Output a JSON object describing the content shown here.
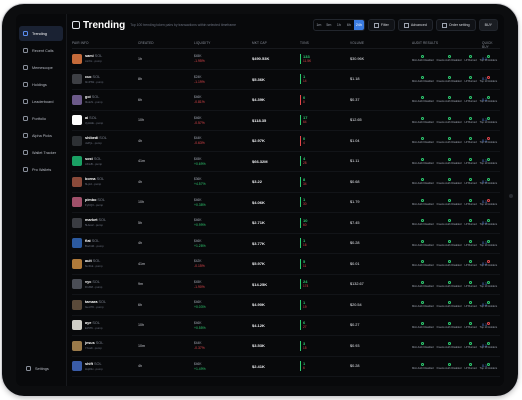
{
  "app": {
    "title": "Trending",
    "subtitle": "Top 100 trending token pairs by transactions within selected timeframe"
  },
  "sidebar": {
    "items": [
      {
        "label": "Trending",
        "active": true
      },
      {
        "label": "Recent Calls"
      },
      {
        "label": "Memescope"
      },
      {
        "label": "Holdings"
      },
      {
        "label": "Leaderboard"
      },
      {
        "label": "Portfolio"
      },
      {
        "label": "Alpha Picks"
      },
      {
        "label": "Wallet Tracker"
      },
      {
        "label": "Pro Wallets"
      }
    ],
    "settings_label": "Settings"
  },
  "header": {
    "timeframes": [
      "1m",
      "5m",
      "1h",
      "6h",
      "24h"
    ],
    "selected_timeframe": "24h",
    "filter_label": "Filter",
    "advanced_label": "Advanced",
    "quick_buy_label": "Order setting",
    "buy_label": "BUY"
  },
  "table": {
    "headers": [
      "PAIR INFO",
      "CREATED",
      "LIQUIDITY",
      "MKT CAP",
      "TXNS",
      "VOLUME",
      "AUDIT RESULTS",
      "QUICK BUY"
    ],
    "audit_labels": [
      "Mint Auth Disabled",
      "Freeze Auth Disabled",
      "LP Burned",
      "Top 10 Holders"
    ],
    "quick_buy": "0.1",
    "rows": [
      {
        "name": "sami",
        "sym": "SOL",
        "meta": "AsXtx...pump",
        "created": "1h",
        "liq": "$45K",
        "pct": "-1.95%",
        "pct_sign": "neg",
        "mcap": "$490.53K",
        "buys": "133",
        "sells": "11.5K",
        "volume": "$30.96K",
        "avatar": "#c46a3a"
      },
      {
        "name": "cuc",
        "sym": "SOL",
        "meta": "9mPtW...pump",
        "created": "8h",
        "liq": "$24K",
        "pct": "-1.19%",
        "pct_sign": "neg",
        "mcap": "$5.36K",
        "buys": "1",
        "sells": "14",
        "volume": "$1.18",
        "avatar": "#3d3f44"
      },
      {
        "name": "goi",
        "sym": "SOL",
        "meta": "9kdoN...pump",
        "created": "6h",
        "liq": "$46K",
        "pct": "-0.81%",
        "pct_sign": "neg",
        "mcap": "$4.39K",
        "buys": "0",
        "sells": "8",
        "volume": "$0.37",
        "avatar": "#6c5a8a"
      },
      {
        "name": "ai",
        "sym": "SOL",
        "meta": "3yHHE...pump",
        "created": "10h",
        "liq": "$46K",
        "pct": "-0.57%",
        "pct_sign": "neg",
        "mcap": "$118.35",
        "buys": "17",
        "sells": "64",
        "volume": "$12.65",
        "avatar": "#ffffff"
      },
      {
        "name": "shibedi",
        "sym": "SOL",
        "meta": "JwPjL...pump",
        "created": "4h",
        "liq": "$44K",
        "pct": "-0.63%",
        "pct_sign": "neg",
        "mcap": "$2.97K",
        "buys": "0",
        "sells": "4",
        "volume": "$1.04",
        "avatar": "#2d3034"
      },
      {
        "name": "sost",
        "sym": "SOL",
        "meta": "AKiuB...pump",
        "created": "41m",
        "liq": "$45K",
        "pct": "+0.69%",
        "pct_sign": "pos",
        "mcap": "$66.32M",
        "buys": "4",
        "sells": "28",
        "volume": "$1.11",
        "avatar": "#1aa064"
      },
      {
        "name": "borna",
        "sym": "SOL",
        "meta": "6Lpid...pump",
        "created": "4h",
        "liq": "$36K",
        "pct": "+4.57%",
        "pct_sign": "pos",
        "mcap": "$3.22",
        "buys": "8",
        "sells": "34",
        "volume": "$0.68",
        "avatar": "#8a4a3a"
      },
      {
        "name": "pimbo",
        "sym": "SOL",
        "meta": "FyKQ3...pump",
        "created": "10h",
        "liq": "$46K",
        "pct": "+0.38%",
        "pct_sign": "pos",
        "mcap": "$4.06K",
        "buys": "1",
        "sells": "30",
        "volume": "$1.79",
        "avatar": "#a0506a"
      },
      {
        "name": "market",
        "sym": "SOL",
        "meta": "5Hwx2...pump",
        "created": "5h",
        "liq": "$46K",
        "pct": "+0.99%",
        "pct_sign": "pos",
        "mcap": "$2.71K",
        "buys": "10",
        "sells": "60",
        "volume": "$7.45",
        "avatar": "#3a3c42"
      },
      {
        "name": "flat",
        "sym": "SOL",
        "meta": "Bo2mR...pump",
        "created": "4h",
        "liq": "$46K",
        "pct": "+1.28%",
        "pct_sign": "pos",
        "mcap": "$3.77K",
        "buys": "1",
        "sells": "16",
        "volume": "$0.28",
        "avatar": "#2c5aa0"
      },
      {
        "name": "ault",
        "sym": "SOL",
        "meta": "6u4Gk...pump",
        "created": "41m",
        "liq": "$42K",
        "pct": "-0.15%",
        "pct_sign": "neg",
        "mcap": "$5.97K",
        "buys": "5",
        "sells": "11",
        "volume": "$0.01",
        "avatar": "#b07a3a"
      },
      {
        "name": "vyc",
        "sym": "SOL",
        "meta": "DrdS8...pump",
        "created": "9m",
        "liq": "$45K",
        "pct": "-1.90%",
        "pct_sign": "neg",
        "mcap": "$14.25K",
        "buys": "24",
        "sells": "174",
        "volume": "$132.67",
        "avatar": "#4a4d55"
      },
      {
        "name": "tamara",
        "sym": "SOL",
        "meta": "GeU7K...pump",
        "created": "6h",
        "liq": "$46K",
        "pct": "+0.03%",
        "pct_sign": "pos",
        "mcap": "$4.90K",
        "buys": "1",
        "sells": "19",
        "volume": "$20.54",
        "avatar": "#5a4a3a"
      },
      {
        "name": "aye",
        "sym": "SOL",
        "meta": "Ez5Tb...pump",
        "created": "10h",
        "liq": "$46K",
        "pct": "+0.55%",
        "pct_sign": "pos",
        "mcap": "$4.12K",
        "buys": "6",
        "sells": "27",
        "volume": "$0.27",
        "avatar": "#d0cfc8"
      },
      {
        "name": "jesus",
        "sym": "SOL",
        "meta": "7Jca9...pump",
        "created": "10m",
        "liq": "$44K",
        "pct": "-0.37%",
        "pct_sign": "neg",
        "mcap": "$3.53K",
        "buys": "3",
        "sells": "15",
        "volume": "$0.93",
        "avatar": "#9a7a4a"
      },
      {
        "name": "shift",
        "sym": "SOL",
        "meta": "HqR2v...pump",
        "created": "4h",
        "liq": "$46K",
        "pct": "+1.49%",
        "pct_sign": "pos",
        "mcap": "$2.41K",
        "buys": "1",
        "sells": "6",
        "volume": "$0.28",
        "avatar": "#3a5ca8"
      }
    ]
  },
  "colors": {
    "accent": "#3a7be0",
    "positive": "#2ecc71",
    "negative": "#e5484d",
    "background": "#08090b"
  }
}
